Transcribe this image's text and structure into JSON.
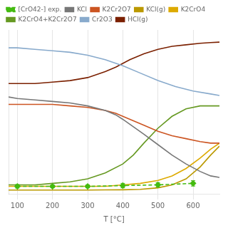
{
  "chart_data": {
    "type": "line",
    "x_label": "T [°C]",
    "xlim": [
      75,
      675
    ],
    "xticks": [
      100,
      200,
      300,
      400,
      500,
      600
    ],
    "ylim": [
      -0.02,
      1.08
    ],
    "yticks": [],
    "tick_labels": "x",
    "grid": true,
    "legend": "upper left",
    "series": [
      {
        "name": "[CrO42-] exp.",
        "color": "#44bb11",
        "line_style": "dashed",
        "marker": "diamond",
        "x": [
          100,
          200,
          300,
          400,
          500,
          600
        ],
        "values": [
          0.03,
          0.03,
          0.03,
          0.035,
          0.04,
          0.05
        ],
        "yerr": [
          0.012,
          0.01,
          0.01,
          0.015,
          0.015,
          0.018
        ]
      },
      {
        "name": "KCl",
        "color": "#777777",
        "x": [
          75,
          100,
          150,
          200,
          250,
          300,
          350,
          380,
          400,
          430,
          460,
          500,
          540,
          580,
          620,
          650,
          675
        ],
        "values": [
          0.63,
          0.62,
          0.61,
          0.6,
          0.59,
          0.57,
          0.54,
          0.51,
          0.48,
          0.43,
          0.38,
          0.31,
          0.24,
          0.18,
          0.13,
          0.1,
          0.09
        ]
      },
      {
        "name": "K2Cr2O7",
        "color": "#cc5522",
        "x": [
          75,
          100,
          150,
          200,
          250,
          300,
          350,
          380,
          400,
          430,
          460,
          500,
          540,
          580,
          620,
          650,
          675
        ],
        "values": [
          0.58,
          0.58,
          0.58,
          0.58,
          0.57,
          0.56,
          0.54,
          0.52,
          0.5,
          0.47,
          0.44,
          0.4,
          0.37,
          0.35,
          0.33,
          0.32,
          0.32
        ]
      },
      {
        "name": "KCl(g)",
        "color": "#bb9900",
        "x": [
          75,
          100,
          150,
          200,
          250,
          300,
          350,
          400,
          450,
          500,
          540,
          580,
          620,
          650,
          675
        ],
        "values": [
          0.005,
          0.005,
          0.005,
          0.005,
          0.005,
          0.005,
          0.006,
          0.007,
          0.01,
          0.02,
          0.04,
          0.08,
          0.16,
          0.24,
          0.3
        ]
      },
      {
        "name": "K2CrO4",
        "color": "#ddaa00",
        "x": [
          75,
          100,
          150,
          200,
          250,
          300,
          350,
          400,
          450,
          500,
          540,
          580,
          620,
          650,
          675
        ],
        "values": [
          0.03,
          0.03,
          0.03,
          0.03,
          0.03,
          0.03,
          0.03,
          0.04,
          0.05,
          0.07,
          0.1,
          0.15,
          0.22,
          0.28,
          0.32
        ]
      },
      {
        "name": "K2CrO4+K2Cr2O7",
        "color": "#669922",
        "x": [
          75,
          100,
          150,
          200,
          250,
          300,
          350,
          400,
          430,
          460,
          500,
          540,
          580,
          620,
          650,
          675
        ],
        "values": [
          0.04,
          0.04,
          0.04,
          0.05,
          0.06,
          0.08,
          0.12,
          0.18,
          0.24,
          0.32,
          0.42,
          0.5,
          0.55,
          0.57,
          0.57,
          0.57
        ]
      },
      {
        "name": "Cr2O3",
        "color": "#88aacc",
        "x": [
          75,
          100,
          150,
          200,
          250,
          300,
          350,
          400,
          450,
          500,
          550,
          600,
          650,
          675
        ],
        "values": [
          0.96,
          0.96,
          0.95,
          0.94,
          0.93,
          0.91,
          0.88,
          0.84,
          0.79,
          0.74,
          0.7,
          0.67,
          0.65,
          0.64
        ]
      },
      {
        "name": "HCl(g)",
        "color": "#7B2000",
        "x": [
          75,
          100,
          150,
          200,
          250,
          300,
          350,
          380,
          420,
          460,
          500,
          540,
          580,
          620,
          650,
          675
        ],
        "values": [
          0.72,
          0.72,
          0.72,
          0.73,
          0.74,
          0.76,
          0.8,
          0.83,
          0.88,
          0.92,
          0.95,
          0.97,
          0.98,
          0.99,
          0.995,
          0.998
        ]
      }
    ]
  }
}
